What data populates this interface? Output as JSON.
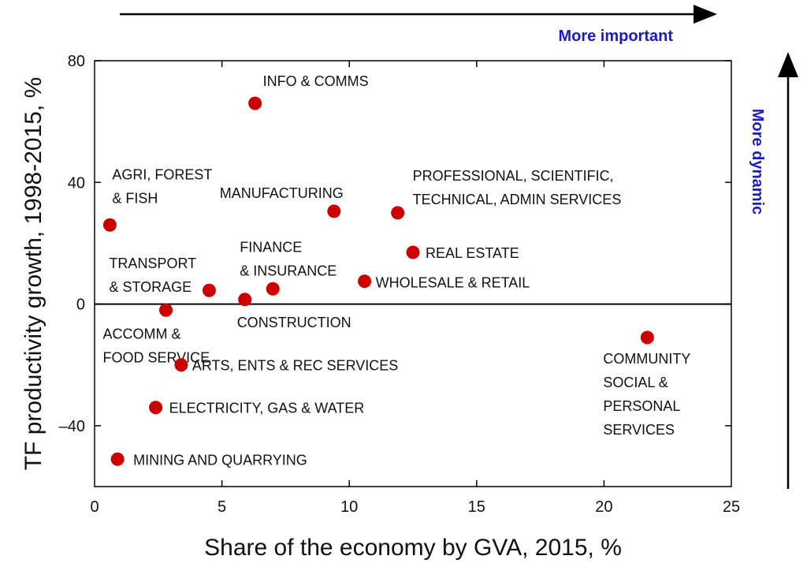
{
  "chart_data": {
    "type": "scatter",
    "xlabel": "Share of the economy by GVA, 2015, %",
    "ylabel": "TF productivity growth, 1998-2015, %",
    "xlim": [
      0,
      25
    ],
    "ylim": [
      -60,
      80
    ],
    "x_ticks": [
      "0",
      "5",
      "10",
      "15",
      "20",
      "25"
    ],
    "y_ticks": [
      "80",
      "40",
      "0",
      "–40"
    ],
    "grid": false,
    "zero_line": true,
    "marker_color": "#cc0000",
    "annotations": {
      "x_arrow_label": "More important",
      "y_arrow_label": "More dynamic",
      "annotation_color": "#1a1acc"
    },
    "points": [
      {
        "label": [
          "INFO & COMMS"
        ],
        "x": 6.3,
        "y": 66
      },
      {
        "label": [
          "AGRI, FOREST",
          "& FISH"
        ],
        "x": 0.6,
        "y": 26
      },
      {
        "label": [
          "MANUFACTURING"
        ],
        "x": 9.4,
        "y": 30.5
      },
      {
        "label": [
          "PROFESSIONAL, SCIENTIFIC,",
          "TECHNICAL, ADMIN SERVICES"
        ],
        "x": 11.9,
        "y": 30
      },
      {
        "label": [
          "REAL ESTATE"
        ],
        "x": 12.5,
        "y": 17
      },
      {
        "label": [
          "FINANCE",
          "& INSURANCE"
        ],
        "x": 7.0,
        "y": 5
      },
      {
        "label": [
          "WHOLESALE & RETAIL"
        ],
        "x": 10.6,
        "y": 7.5
      },
      {
        "label": [
          "TRANSPORT",
          "& STORAGE"
        ],
        "x": 4.5,
        "y": 4.5
      },
      {
        "label": [
          "CONSTRUCTION"
        ],
        "x": 5.9,
        "y": 1.5
      },
      {
        "label": [
          "ACCOMM &",
          "FOOD SERVICE"
        ],
        "x": 2.8,
        "y": -2
      },
      {
        "label": [
          "COMMUNITY",
          "SOCIAL &",
          "PERSONAL",
          "SERVICES"
        ],
        "x": 21.7,
        "y": -11
      },
      {
        "label": [
          "ARTS, ENTS & REC SERVICES"
        ],
        "x": 3.4,
        "y": -20
      },
      {
        "label": [
          "ELECTRICITY, GAS & WATER"
        ],
        "x": 2.4,
        "y": -34
      },
      {
        "label": [
          "MINING AND QUARRYING"
        ],
        "x": 0.9,
        "y": -51
      }
    ]
  }
}
